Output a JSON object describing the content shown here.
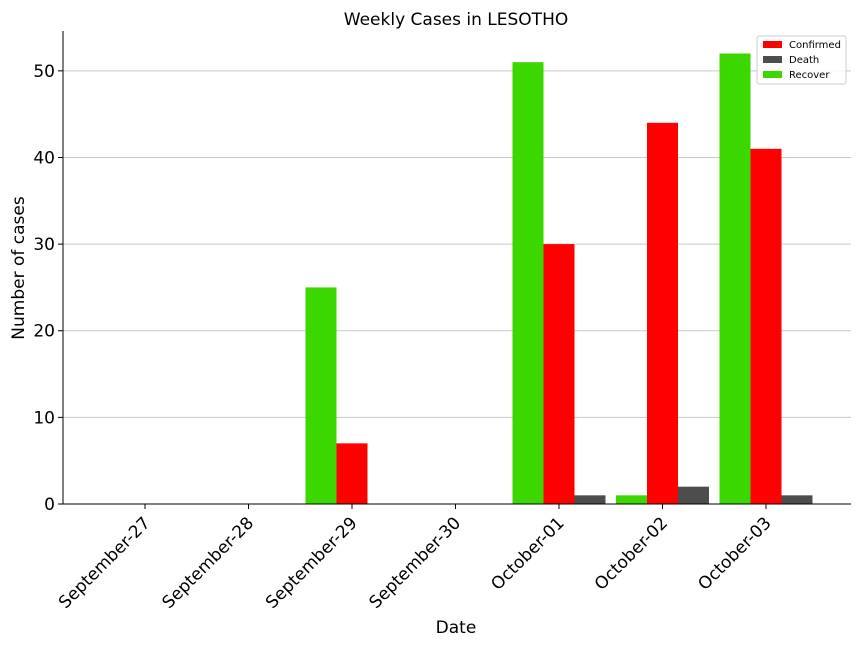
{
  "chart_data": {
    "type": "bar",
    "title": "Weekly Cases in LESOTHO",
    "xlabel": "Date",
    "ylabel": "Number of cases",
    "categories": [
      "September-27",
      "September-28",
      "September-29",
      "September-30",
      "October-01",
      "October-02",
      "October-03"
    ],
    "series": [
      {
        "name": "Recover",
        "color": "#3cd700",
        "values": [
          0,
          0,
          25,
          0,
          51,
          1,
          52
        ]
      },
      {
        "name": "Confirmed",
        "color": "#ff0000",
        "values": [
          0,
          0,
          7,
          0,
          30,
          44,
          41
        ]
      },
      {
        "name": "Death",
        "color": "#4d4d4d",
        "values": [
          0,
          0,
          0,
          0,
          1,
          2,
          1
        ]
      }
    ],
    "legend_order": [
      "Confirmed",
      "Death",
      "Recover"
    ],
    "yticks": [
      0,
      10,
      20,
      30,
      40,
      50
    ],
    "ylim": [
      0,
      54.6
    ],
    "grid": "horizontal",
    "legend": "top-right"
  }
}
